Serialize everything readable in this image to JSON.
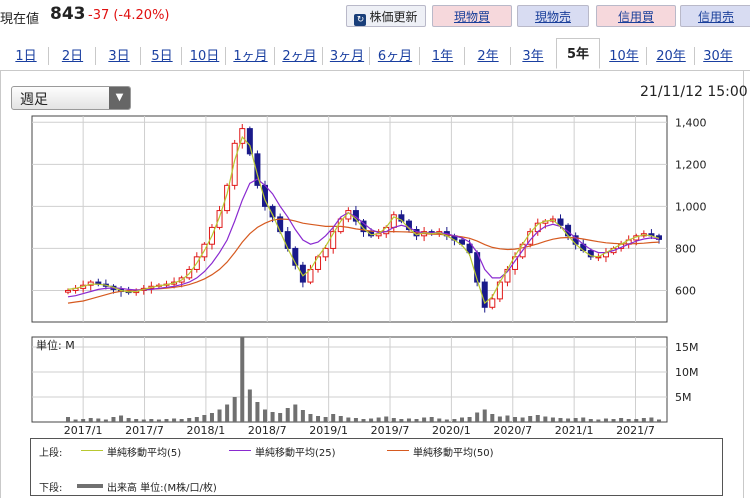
{
  "header": {
    "price_label": "現在値",
    "price_value": "843",
    "price_change": "-37 (-4.20%)",
    "buttons": {
      "refresh": "株価更新",
      "cash_buy": "現物買",
      "cash_sell": "現物売",
      "margin_buy": "信用買",
      "margin_sell": "信用売"
    }
  },
  "tabs": [
    "1日",
    "2日",
    "3日",
    "5日",
    "10日",
    "1ヶ月",
    "2ヶ月",
    "3ヶ月",
    "6ヶ月",
    "1年",
    "2年",
    "3年",
    "5年",
    "10年",
    "20年",
    "30年"
  ],
  "active_tab": "5年",
  "interval_select": "週足",
  "timestamp": "21/11/12 15:00",
  "colors": {
    "up": "#e01818",
    "down": "#1a1a8a",
    "ma5": "#b8c830",
    "ma25": "#8a2ad0",
    "ma50": "#d65a20",
    "volume": "#707070"
  },
  "volume_panel": {
    "unit_label": "単位: M"
  },
  "legend": {
    "upper_label": "上段:",
    "lower_label": "下段:",
    "ma5": "単純移動平均(5)",
    "ma25": "単純移動平均(25)",
    "ma50": "単純移動平均(50)",
    "volume": "出来高 単位:(M株/口/枚)"
  },
  "chart_data": {
    "type": "candlestick",
    "price_axis": {
      "ticks": [
        1400,
        1200,
        1000,
        800,
        600
      ],
      "ylim": [
        450,
        1430
      ]
    },
    "volume_axis": {
      "ticks": [
        "15M",
        "10M",
        "5M"
      ],
      "ylim": [
        0,
        17
      ]
    },
    "x_ticks": [
      "2017/1",
      "2017/7",
      "2018/1",
      "2018/7",
      "2019/1",
      "2019/7",
      "2020/1",
      "2020/7",
      "2021/1",
      "2021/7"
    ],
    "close_series": [
      600,
      610,
      625,
      640,
      630,
      620,
      605,
      595,
      590,
      600,
      610,
      620,
      625,
      630,
      640,
      660,
      700,
      760,
      820,
      900,
      980,
      1100,
      1300,
      1370,
      1250,
      1100,
      1000,
      950,
      880,
      800,
      720,
      640,
      700,
      760,
      800,
      880,
      940,
      980,
      930,
      880,
      860,
      870,
      900,
      960,
      930,
      890,
      860,
      880,
      870,
      880,
      860,
      840,
      820,
      780,
      640,
      520,
      560,
      640,
      700,
      760,
      820,
      880,
      920,
      930,
      940,
      910,
      860,
      820,
      790,
      760,
      760,
      780,
      800,
      820,
      840,
      860,
      870,
      860,
      843
    ],
    "ma5": [
      605,
      610,
      620,
      630,
      630,
      625,
      615,
      600,
      593,
      595,
      605,
      615,
      622,
      628,
      636,
      650,
      680,
      730,
      790,
      860,
      950,
      1060,
      1220,
      1330,
      1290,
      1150,
      1030,
      960,
      880,
      800,
      730,
      670,
      700,
      760,
      810,
      870,
      930,
      970,
      940,
      895,
      865,
      870,
      900,
      950,
      935,
      895,
      865,
      875,
      870,
      875,
      860,
      840,
      815,
      770,
      650,
      540,
      570,
      640,
      700,
      765,
      820,
      875,
      915,
      930,
      935,
      905,
      860,
      820,
      790,
      765,
      760,
      780,
      800,
      820,
      840,
      855,
      865,
      860,
      848
    ],
    "ma25": [
      570,
      575,
      585,
      595,
      605,
      610,
      612,
      610,
      605,
      602,
      603,
      605,
      610,
      615,
      620,
      628,
      640,
      660,
      690,
      730,
      780,
      840,
      930,
      1030,
      1110,
      1130,
      1100,
      1060,
      1000,
      950,
      890,
      840,
      820,
      830,
      860,
      900,
      950,
      970,
      950,
      920,
      890,
      875,
      880,
      900,
      910,
      900,
      880,
      875,
      875,
      875,
      870,
      860,
      850,
      830,
      780,
      700,
      660,
      660,
      690,
      740,
      790,
      840,
      880,
      905,
      915,
      905,
      880,
      850,
      820,
      795,
      780,
      780,
      790,
      805,
      820,
      835,
      845,
      850,
      845
    ],
    "ma50": [
      540,
      545,
      550,
      560,
      570,
      580,
      590,
      596,
      600,
      602,
      604,
      606,
      608,
      611,
      615,
      620,
      628,
      640,
      655,
      675,
      700,
      735,
      780,
      830,
      870,
      900,
      920,
      935,
      940,
      938,
      930,
      920,
      915,
      910,
      905,
      905,
      905,
      900,
      893,
      888,
      882,
      880,
      880,
      880,
      879,
      878,
      874,
      870,
      868,
      867,
      864,
      860,
      855,
      848,
      835,
      818,
      805,
      798,
      795,
      797,
      803,
      812,
      822,
      834,
      844,
      850,
      852,
      850,
      845,
      838,
      832,
      827,
      824,
      822,
      822,
      823,
      825,
      828,
      830
    ],
    "volume_series": [
      1.0,
      0.5,
      0.6,
      0.8,
      0.7,
      0.5,
      1.0,
      1.3,
      0.8,
      0.6,
      0.5,
      0.6,
      0.5,
      0.6,
      0.7,
      0.6,
      0.8,
      1.0,
      1.4,
      1.8,
      2.5,
      3.5,
      5.0,
      17.0,
      6.5,
      4.0,
      2.5,
      2.0,
      1.8,
      2.8,
      3.5,
      2.4,
      1.6,
      1.2,
      1.0,
      1.6,
      1.2,
      0.9,
      0.8,
      0.6,
      0.7,
      0.9,
      1.1,
      0.8,
      0.6,
      0.7,
      0.6,
      0.9,
      1.0,
      0.7,
      0.5,
      0.6,
      0.9,
      1.0,
      1.9,
      2.5,
      1.6,
      1.1,
      1.3,
      1.0,
      0.9,
      1.2,
      1.4,
      1.1,
      0.9,
      0.8,
      0.7,
      0.8,
      0.9,
      0.6,
      0.5,
      0.7,
      0.6,
      0.8,
      0.6,
      0.6,
      0.8,
      0.9,
      0.5
    ]
  }
}
